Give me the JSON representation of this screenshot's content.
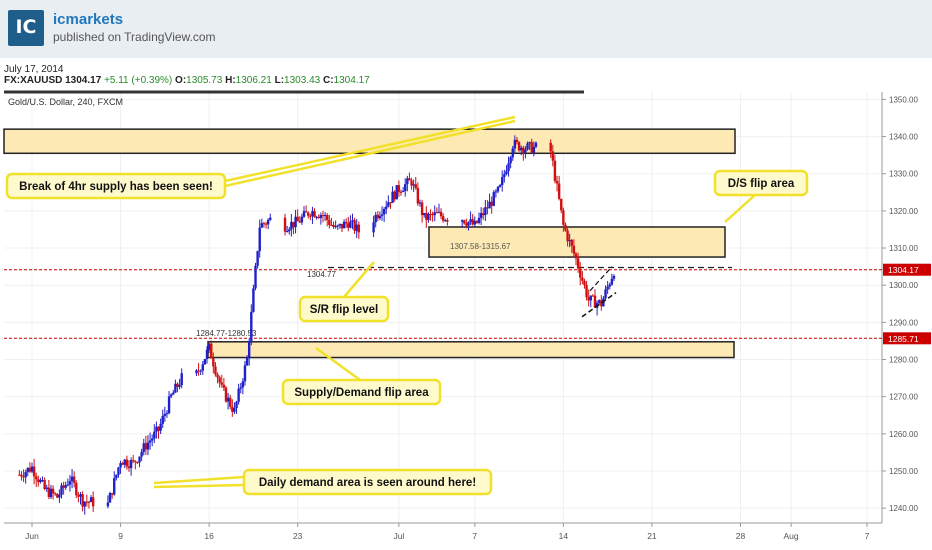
{
  "header": {
    "brand": "icmarkets",
    "published": "published on TradingView.com",
    "logo_text": "IC",
    "logo_icon": "icmarkets-logo-icon"
  },
  "meta": {
    "date": "July 17, 2014",
    "symbol": "FX:XAUUSD",
    "price": "1304.17",
    "change": "+5.11 (+0.39%)",
    "open_label": "O:",
    "open": "1305.73",
    "high_label": "H:",
    "high": "1306.21",
    "low_label": "L:",
    "low": "1303.43",
    "close_label": "C:",
    "close": "1304.17"
  },
  "chart_data": {
    "type": "candlestick",
    "title": "Gold/U.S. Dollar, 240, FXCM",
    "y_axis": {
      "ticks": [
        1240,
        1250,
        1260,
        1270,
        1280,
        1290,
        1300,
        1310,
        1320,
        1330,
        1340,
        1350
      ],
      "range": [
        1236,
        1352
      ],
      "position": "right"
    },
    "x_axis": {
      "ticks": [
        {
          "label": "Jun",
          "date": "2014-06-02"
        },
        {
          "label": "9",
          "date": "2014-06-09"
        },
        {
          "label": "16",
          "date": "2014-06-16"
        },
        {
          "label": "23",
          "date": "2014-06-23"
        },
        {
          "label": "Jul",
          "date": "2014-07-01"
        },
        {
          "label": "7",
          "date": "2014-07-07"
        },
        {
          "label": "14",
          "date": "2014-07-14"
        },
        {
          "label": "21",
          "date": "2014-07-21"
        },
        {
          "label": "28",
          "date": "2014-07-28"
        },
        {
          "label": "Aug",
          "date": "2014-08-01"
        },
        {
          "label": "7",
          "date": "2014-08-07"
        }
      ]
    },
    "price_path": [
      [
        "2014-06-01",
        1249
      ],
      [
        "2014-06-02",
        1251
      ],
      [
        "2014-06-03",
        1245
      ],
      [
        "2014-06-04",
        1243
      ],
      [
        "2014-06-05",
        1248
      ],
      [
        "2014-06-06",
        1242
      ],
      [
        "2014-06-08",
        1241
      ],
      [
        "2014-06-09",
        1253
      ],
      [
        "2014-06-10",
        1252
      ],
      [
        "2014-06-11",
        1257
      ],
      [
        "2014-06-12",
        1261
      ],
      [
        "2014-06-13",
        1270
      ],
      [
        "2014-06-14",
        1276
      ],
      [
        "2014-06-15",
        1276
      ],
      [
        "2014-06-16",
        1283
      ],
      [
        "2014-06-17",
        1272
      ],
      [
        "2014-06-18",
        1266
      ],
      [
        "2014-06-19",
        1280
      ],
      [
        "2014-06-20",
        1316
      ],
      [
        "2014-06-21",
        1318
      ],
      [
        "2014-06-22",
        1316
      ],
      [
        "2014-06-23",
        1317
      ],
      [
        "2014-06-24",
        1320
      ],
      [
        "2014-06-25",
        1319
      ],
      [
        "2014-06-26",
        1315
      ],
      [
        "2014-06-27",
        1317
      ],
      [
        "2014-06-28",
        1314
      ],
      [
        "2014-06-29",
        1318
      ],
      [
        "2014-06-30",
        1322
      ],
      [
        "2014-07-01",
        1326
      ],
      [
        "2014-07-02",
        1328
      ],
      [
        "2014-07-03",
        1318
      ],
      [
        "2014-07-04",
        1319
      ],
      [
        "2014-07-05",
        1318
      ],
      [
        "2014-07-06",
        1318
      ],
      [
        "2014-07-07",
        1316
      ],
      [
        "2014-07-08",
        1321
      ],
      [
        "2014-07-09",
        1326
      ],
      [
        "2014-07-10",
        1338
      ],
      [
        "2014-07-11",
        1337
      ],
      [
        "2014-07-12",
        1337
      ],
      [
        "2014-07-13",
        1336
      ],
      [
        "2014-07-14",
        1316
      ],
      [
        "2014-07-15",
        1307
      ],
      [
        "2014-07-16",
        1296
      ],
      [
        "2014-07-17",
        1295
      ],
      [
        "2014-07-18",
        1304
      ]
    ],
    "zones": [
      {
        "kind": "supply",
        "from": 1335.5,
        "to": 1342
      },
      {
        "kind": "ds-flip",
        "from": 1307.58,
        "to": 1315.67,
        "label": "1307.58-1315.67"
      },
      {
        "kind": "sd-flip",
        "from": 1280.53,
        "to": 1284.77,
        "label": "1284.77-1280.53"
      }
    ],
    "levels": [
      {
        "name": "last-price",
        "value": 1304.17,
        "label": "1304.17",
        "color": "#cc0000"
      },
      {
        "name": "sd-level",
        "value": 1285.71,
        "label": "1285.71",
        "color": "#cc0000"
      },
      {
        "name": "sr-flip",
        "value": 1304.77,
        "label": "1304.77",
        "color": "#333333"
      }
    ],
    "annotations": [
      "Break of 4hr supply has been seen!",
      "D/S flip area",
      "S/R flip level",
      "Supply/Demand flip area",
      "Daily demand area is seen around here!"
    ],
    "colors": {
      "up": "#2020c8",
      "down": "#d01010",
      "zone_fill": "#fde9b4",
      "callout_fill": "#fffacc",
      "callout_border": "#f2e12b"
    }
  }
}
